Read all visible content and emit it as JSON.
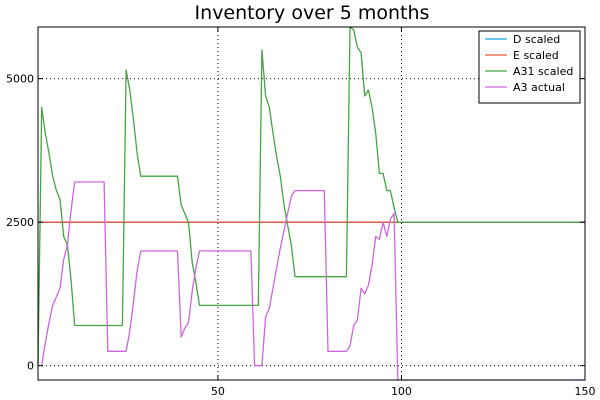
{
  "chart_data": {
    "type": "line",
    "title": "Inventory over 5 months",
    "xlabel": "",
    "ylabel": "",
    "xlim": [
      1,
      150
    ],
    "ylim": [
      -250,
      5900
    ],
    "xticks": [
      50,
      100,
      150
    ],
    "yticks": [
      0,
      2500,
      5000
    ],
    "grid": true,
    "legend_position": "top-right",
    "series": [
      {
        "name": "D scaled",
        "color": "#1f9fdf",
        "x": [
          1,
          150
        ],
        "y": [
          2500,
          2500
        ]
      },
      {
        "name": "E scaled",
        "color": "#e8533a",
        "x": [
          1,
          150
        ],
        "y": [
          2500,
          2500
        ]
      },
      {
        "name": "A31 scaled",
        "color": "#45a345",
        "x": [
          1,
          2,
          3,
          4,
          5,
          6,
          7,
          8,
          9,
          10,
          11,
          12,
          13,
          24,
          25,
          26,
          27,
          28,
          29,
          30,
          39,
          40,
          41,
          42,
          43,
          44,
          45,
          46,
          60,
          61,
          62,
          63,
          64,
          65,
          66,
          67,
          68,
          69,
          70,
          71,
          72,
          85,
          86,
          87,
          88,
          89,
          90,
          91,
          92,
          93,
          94,
          95,
          96,
          97,
          98,
          99,
          100,
          150
        ],
        "y": [
          0,
          4500,
          4050,
          3700,
          3300,
          3050,
          2900,
          2250,
          2100,
          1500,
          700,
          700,
          700,
          700,
          5150,
          4800,
          4300,
          3700,
          3300,
          3300,
          3300,
          2800,
          2650,
          2500,
          1800,
          1450,
          1050,
          1050,
          1050,
          1050,
          5500,
          4700,
          4500,
          4050,
          3650,
          3300,
          2800,
          2450,
          2100,
          1550,
          1550,
          1550,
          5900,
          5850,
          5550,
          5450,
          4700,
          4800,
          4500,
          4050,
          3350,
          3350,
          3050,
          3050,
          2750,
          2500,
          2500,
          2500
        ]
      },
      {
        "name": "A3 actual",
        "color": "#cc66dd",
        "x": [
          2,
          3,
          4,
          5,
          6,
          7,
          8,
          9,
          10,
          11,
          19,
          20,
          25,
          26,
          27,
          28,
          29,
          39,
          40,
          41,
          42,
          43,
          44,
          45,
          59,
          60,
          61,
          62,
          63,
          64,
          65,
          66,
          67,
          68,
          69,
          70,
          71,
          79,
          80,
          85,
          86,
          87,
          88,
          89,
          90,
          91,
          92,
          93,
          94,
          95,
          96,
          97,
          98,
          99,
          100,
          101,
          150
        ],
        "y": [
          0,
          400,
          750,
          1050,
          1200,
          1350,
          1850,
          2100,
          2700,
          3200,
          3200,
          250,
          250,
          600,
          1100,
          1650,
          2000,
          2000,
          500,
          650,
          750,
          1300,
          1700,
          2000,
          2000,
          0,
          0,
          0,
          850,
          1000,
          1350,
          1700,
          2050,
          2350,
          2650,
          2950,
          3050,
          3050,
          250,
          250,
          350,
          700,
          800,
          1350,
          1250,
          1400,
          1750,
          2250,
          2200,
          2500,
          2250,
          2550,
          2650,
          -250,
          -250,
          -250,
          -250
        ]
      }
    ]
  }
}
